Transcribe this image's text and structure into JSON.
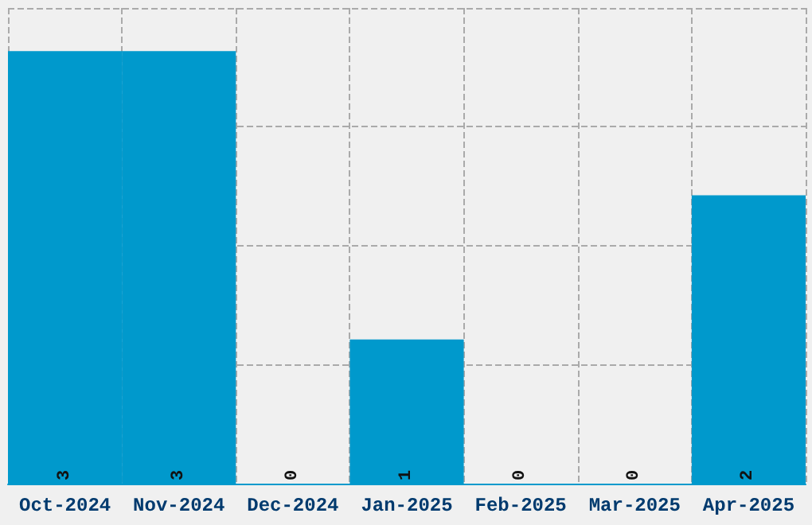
{
  "chart_data": {
    "type": "bar",
    "categories": [
      "Oct-2024",
      "Nov-2024",
      "Dec-2024",
      "Jan-2025",
      "Feb-2025",
      "Mar-2025",
      "Apr-2025"
    ],
    "values": [
      3,
      3,
      0,
      1,
      0,
      0,
      2
    ],
    "color": "#0099cc",
    "ylim": [
      0,
      3.3
    ],
    "yticks": [
      {
        "value": 0,
        "label": null
      },
      {
        "value": 0.825,
        "label": null
      },
      {
        "value": 1.65,
        "label": null
      },
      {
        "value": 2.475,
        "label": null
      },
      {
        "value": 3.3,
        "label": null
      }
    ],
    "tick_labels": "x",
    "grid": true,
    "data_labels": true
  }
}
